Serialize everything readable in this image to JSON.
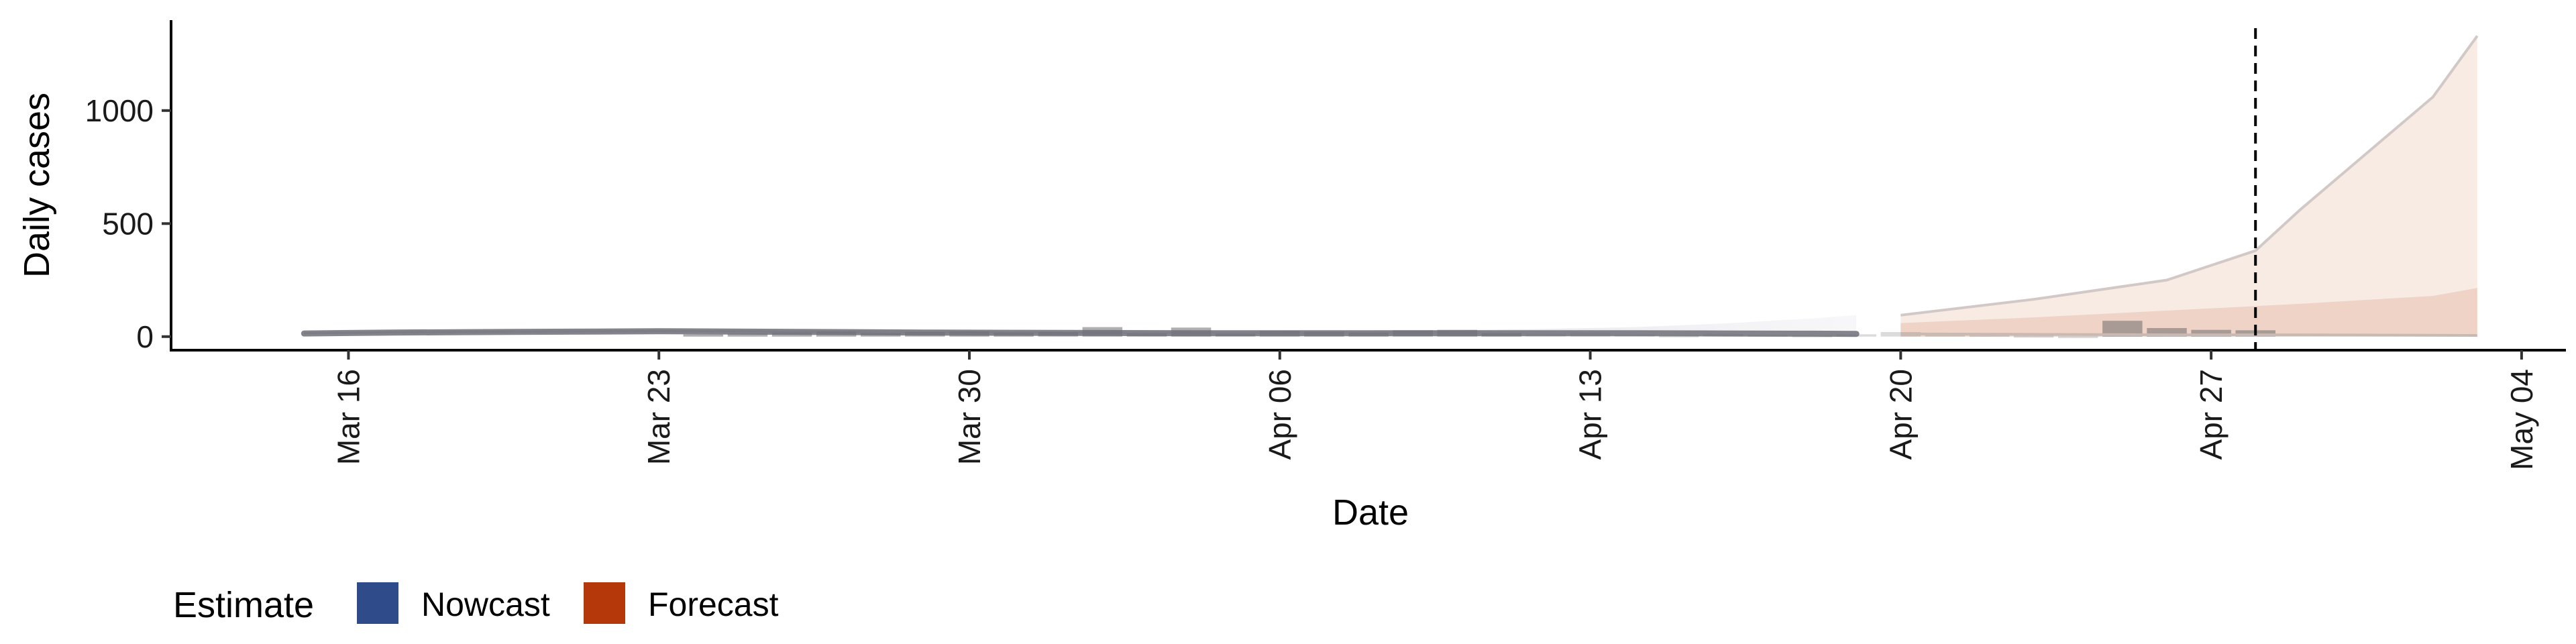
{
  "chart_data": {
    "type": "area",
    "xlabel": "Date",
    "ylabel": "Daily cases",
    "x_ticks": [
      "Mar 16",
      "Mar 23",
      "Mar 30",
      "Apr 06",
      "Apr 13",
      "Apr 20",
      "Apr 27",
      "May 04"
    ],
    "y_ticks": [
      0,
      500,
      1000
    ],
    "ylim": [
      -60,
      1400
    ],
    "xlim": [
      "2020-03-12",
      "2020-05-05"
    ],
    "forecast_date": "2020-04-28",
    "legend": {
      "title": "Estimate",
      "position": "bottom-left",
      "entries": [
        {
          "label": "Nowcast",
          "color": "#2f4b8a"
        },
        {
          "label": "Forecast",
          "color": "#b5380b"
        }
      ]
    },
    "reported_cases": {
      "dates": [
        "2020-03-24",
        "2020-03-25",
        "2020-03-26",
        "2020-03-27",
        "2020-03-28",
        "2020-03-29",
        "2020-03-30",
        "2020-03-31",
        "2020-04-01",
        "2020-04-02",
        "2020-04-03",
        "2020-04-04",
        "2020-04-05",
        "2020-04-06",
        "2020-04-07",
        "2020-04-08",
        "2020-04-09",
        "2020-04-10",
        "2020-04-11",
        "2020-04-12",
        "2020-04-13",
        "2020-04-14",
        "2020-04-15",
        "2020-04-16",
        "2020-04-17",
        "2020-04-18",
        "2020-04-19",
        "2020-04-20",
        "2020-04-21",
        "2020-04-22",
        "2020-04-23",
        "2020-04-24",
        "2020-04-25",
        "2020-04-26",
        "2020-04-27",
        "2020-04-28"
      ],
      "values": [
        10,
        14,
        18,
        22,
        16,
        20,
        24,
        18,
        20,
        42,
        14,
        40,
        12,
        26,
        22,
        18,
        28,
        30,
        16,
        12,
        18,
        10,
        6,
        12,
        8,
        6,
        10,
        20,
        12,
        8,
        4,
        2,
        70,
        38,
        30,
        28
      ],
      "color": "#6e6e6e"
    },
    "series": [
      {
        "name": "Nowcast",
        "color": "#2f4b8a",
        "dates": [
          "2020-03-15",
          "2020-03-17",
          "2020-03-19",
          "2020-03-21",
          "2020-03-23",
          "2020-03-25",
          "2020-03-27",
          "2020-03-29",
          "2020-03-31",
          "2020-04-02",
          "2020-04-04",
          "2020-04-06",
          "2020-04-08",
          "2020-04-10",
          "2020-04-12",
          "2020-04-14",
          "2020-04-16",
          "2020-04-18",
          "2020-04-19"
        ],
        "median": [
          14,
          18,
          20,
          22,
          24,
          22,
          20,
          18,
          17,
          16,
          15,
          15,
          15,
          15,
          15,
          15,
          14,
          13,
          12
        ],
        "lower": [
          10,
          14,
          16,
          18,
          19,
          18,
          16,
          14,
          13,
          12,
          11,
          10,
          10,
          9,
          8,
          6,
          4,
          2,
          1
        ],
        "upper": [
          20,
          24,
          26,
          28,
          30,
          28,
          26,
          24,
          23,
          22,
          22,
          22,
          24,
          28,
          34,
          42,
          58,
          80,
          95
        ]
      },
      {
        "name": "Forecast",
        "color": "#b5380b",
        "dates": [
          "2020-04-20",
          "2020-04-23",
          "2020-04-26",
          "2020-04-28",
          "2020-04-29",
          "2020-05-02",
          "2020-05-03"
        ],
        "median": [
          12,
          10,
          8,
          8,
          8,
          6,
          5
        ],
        "lower": [
          0,
          0,
          0,
          0,
          0,
          0,
          0
        ],
        "inner_upper": [
          60,
          85,
          115,
          135,
          145,
          180,
          215
        ],
        "upper": [
          95,
          165,
          250,
          380,
          560,
          1060,
          1330
        ]
      }
    ]
  }
}
